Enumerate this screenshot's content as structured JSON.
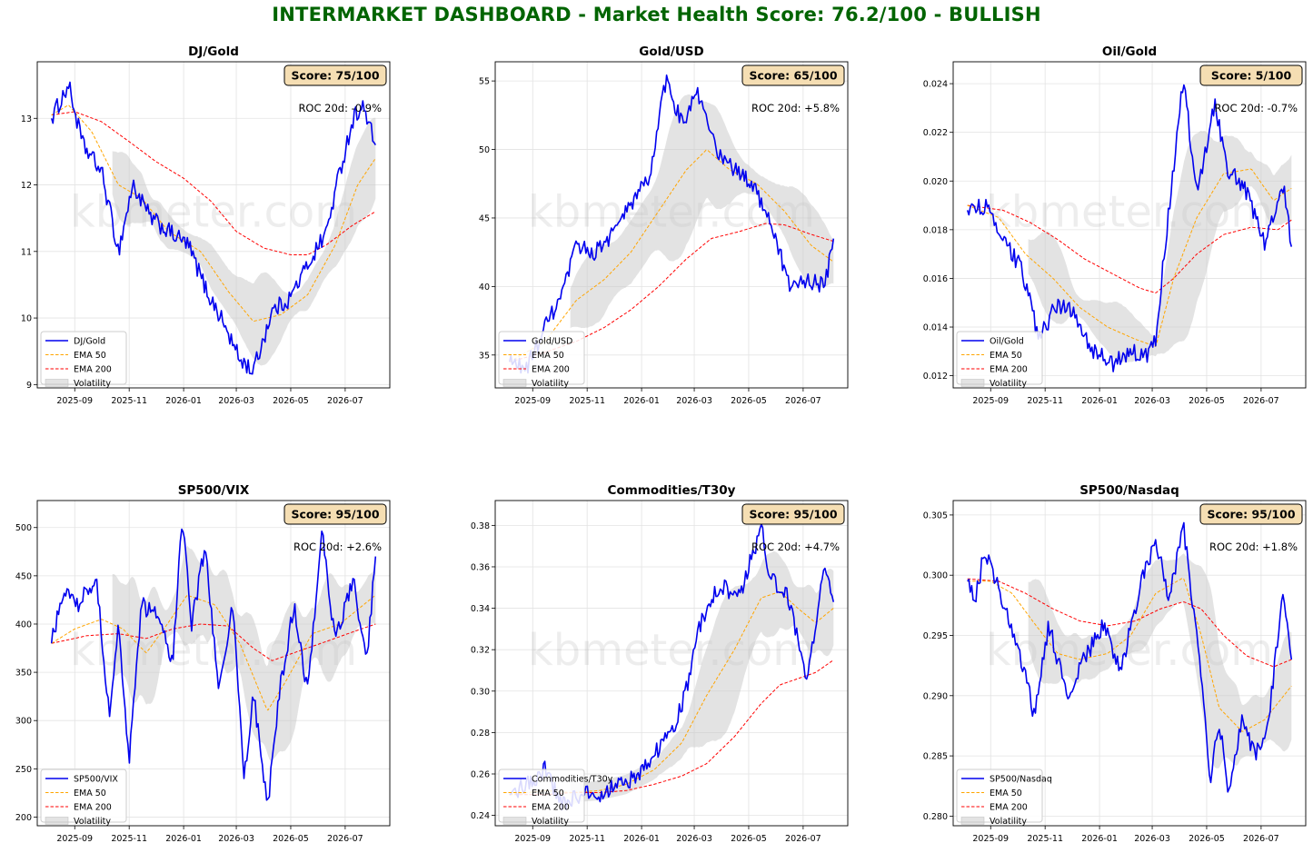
{
  "title": "INTERMARKET DASHBOARD - Market Health Score: 76.2/100 - BULLISH",
  "watermark": "kbmeter.com",
  "colors": {
    "title": "#006400",
    "price": "#0000ee",
    "ema50": "#ffa500",
    "ema200": "#ff0000",
    "volatility": "#c8c8c8",
    "score_box": "#f5deb3"
  },
  "x_ticks": [
    "2025-09",
    "2025-11",
    "2026-01",
    "2026-03",
    "2026-05",
    "2026-07"
  ],
  "legend_labels": {
    "ema50": "EMA 50",
    "ema200": "EMA 200",
    "volatility": "Volatility"
  },
  "chart_data": [
    {
      "type": "line",
      "title": "DJ/Gold",
      "score": "Score: 75/100",
      "roc": "ROC 20d: -0.9%",
      "ylim": [
        8.95,
        13.85
      ],
      "yticks": [
        "9",
        "10",
        "11",
        "12",
        "13"
      ],
      "series": [
        {
          "name": "DJ/Gold",
          "x": [
            "2025-08-06",
            "2025-08-25",
            "2025-09-10",
            "2025-10-01",
            "2025-10-20",
            "2025-11-05",
            "2025-11-25",
            "2025-12-15",
            "2026-01-06",
            "2026-01-27",
            "2026-02-12",
            "2026-03-04",
            "2026-03-20",
            "2026-04-10",
            "2026-04-30",
            "2026-05-20",
            "2026-06-10",
            "2026-06-25",
            "2026-07-10",
            "2026-07-20",
            "2026-08-04"
          ],
          "y": [
            13.0,
            13.5,
            12.6,
            12.2,
            11.0,
            12.0,
            11.5,
            11.3,
            11.1,
            10.4,
            10.0,
            9.4,
            9.2,
            10.1,
            10.3,
            10.8,
            11.3,
            12.2,
            13.0,
            13.2,
            12.6
          ]
        },
        {
          "name": "EMA 50",
          "x": [
            "2025-08-06",
            "2025-08-25",
            "2025-09-20",
            "2025-10-20",
            "2025-11-15",
            "2025-12-15",
            "2026-01-20",
            "2026-02-20",
            "2026-03-20",
            "2026-04-20",
            "2026-05-20",
            "2026-06-20",
            "2026-07-15",
            "2026-08-04"
          ],
          "y": [
            13.05,
            13.2,
            12.8,
            12.0,
            11.8,
            11.3,
            11.0,
            10.4,
            9.95,
            10.05,
            10.35,
            11.1,
            12.0,
            12.4
          ]
        },
        {
          "name": "EMA 200",
          "x": [
            "2025-08-06",
            "2025-09-01",
            "2025-10-01",
            "2025-11-01",
            "2025-12-01",
            "2026-01-01",
            "2026-02-01",
            "2026-03-01",
            "2026-04-01",
            "2026-05-01",
            "2026-05-20",
            "2026-06-10",
            "2026-07-10",
            "2026-08-04"
          ],
          "y": [
            13.05,
            13.1,
            12.95,
            12.65,
            12.35,
            12.1,
            11.75,
            11.3,
            11.05,
            10.95,
            10.95,
            11.1,
            11.4,
            11.6
          ]
        }
      ]
    },
    {
      "type": "line",
      "title": "Gold/USD",
      "score": "Score: 65/100",
      "roc": "ROC 20d: +5.8%",
      "ylim": [
        32.6,
        56.4
      ],
      "yticks": [
        "35",
        "40",
        "45",
        "50",
        "55"
      ],
      "series": [
        {
          "name": "Gold/USD",
          "x": [
            "2025-08-06",
            "2025-08-25",
            "2025-09-15",
            "2025-10-05",
            "2025-10-20",
            "2025-11-10",
            "2025-12-01",
            "2025-12-20",
            "2026-01-10",
            "2026-01-28",
            "2026-02-15",
            "2026-03-05",
            "2026-03-25",
            "2026-04-15",
            "2026-05-05",
            "2026-05-25",
            "2026-06-15",
            "2026-07-05",
            "2026-07-25",
            "2026-08-04"
          ],
          "y": [
            34.5,
            34.0,
            37.0,
            39.5,
            43.0,
            42.5,
            44.0,
            46.0,
            48.0,
            55.0,
            52.0,
            54.0,
            50.0,
            48.5,
            47.5,
            45.0,
            40.0,
            40.5,
            40.0,
            43.5
          ]
        },
        {
          "name": "EMA 50",
          "x": [
            "2025-08-06",
            "2025-09-15",
            "2025-10-20",
            "2025-11-20",
            "2025-12-20",
            "2026-01-20",
            "2026-02-20",
            "2026-03-15",
            "2026-04-10",
            "2026-05-10",
            "2026-06-10",
            "2026-07-10",
            "2026-08-04"
          ],
          "y": [
            34.5,
            36.0,
            39.0,
            40.5,
            42.5,
            45.5,
            48.5,
            50.0,
            48.5,
            47.5,
            45.5,
            43.0,
            41.8
          ]
        },
        {
          "name": "EMA 200",
          "x": [
            "2025-08-06",
            "2025-09-15",
            "2025-10-20",
            "2025-11-20",
            "2025-12-20",
            "2026-01-20",
            "2026-02-20",
            "2026-03-20",
            "2026-04-20",
            "2026-05-20",
            "2026-06-10",
            "2026-07-10",
            "2026-08-04"
          ],
          "y": [
            34.5,
            35.2,
            36.0,
            37.0,
            38.3,
            40.0,
            42.0,
            43.5,
            44.0,
            44.6,
            44.5,
            43.8,
            43.3
          ]
        }
      ]
    },
    {
      "type": "line",
      "title": "Oil/Gold",
      "score": "Score: 5/100",
      "roc": "ROC 20d: -0.7%",
      "ylim": [
        0.0115,
        0.0249
      ],
      "yticks": [
        "0.012",
        "0.014",
        "0.016",
        "0.018",
        "0.020",
        "0.022",
        "0.024"
      ],
      "series": [
        {
          "name": "Oil/Gold",
          "x": [
            "2025-08-06",
            "2025-08-25",
            "2025-09-15",
            "2025-10-05",
            "2025-10-25",
            "2025-11-15",
            "2025-12-05",
            "2025-12-25",
            "2026-01-15",
            "2026-02-05",
            "2026-02-25",
            "2026-03-05",
            "2026-03-20",
            "2026-04-05",
            "2026-04-20",
            "2026-05-10",
            "2026-05-25",
            "2026-06-15",
            "2026-07-05",
            "2026-07-25",
            "2026-08-04"
          ],
          "y": [
            0.0188,
            0.019,
            0.0175,
            0.0165,
            0.0135,
            0.015,
            0.0145,
            0.013,
            0.0125,
            0.013,
            0.0128,
            0.0135,
            0.019,
            0.0242,
            0.0195,
            0.0232,
            0.0205,
            0.0195,
            0.0175,
            0.02,
            0.0173
          ]
        },
        {
          "name": "EMA 50",
          "x": [
            "2025-08-06",
            "2025-09-10",
            "2025-10-10",
            "2025-11-10",
            "2025-12-10",
            "2026-01-10",
            "2026-02-10",
            "2026-03-05",
            "2026-03-25",
            "2026-04-20",
            "2026-05-20",
            "2026-06-20",
            "2026-07-15",
            "2026-08-04"
          ],
          "y": [
            0.019,
            0.0185,
            0.017,
            0.016,
            0.0148,
            0.014,
            0.0135,
            0.0132,
            0.016,
            0.0185,
            0.0203,
            0.0205,
            0.0192,
            0.0197
          ]
        },
        {
          "name": "EMA 200",
          "x": [
            "2025-08-06",
            "2025-09-15",
            "2025-10-15",
            "2025-11-15",
            "2025-12-15",
            "2026-01-15",
            "2026-02-15",
            "2026-03-05",
            "2026-03-25",
            "2026-04-20",
            "2026-05-20",
            "2026-06-20",
            "2026-07-20",
            "2026-08-04"
          ],
          "y": [
            0.019,
            0.0188,
            0.0183,
            0.0176,
            0.0168,
            0.0162,
            0.0156,
            0.0154,
            0.016,
            0.017,
            0.0178,
            0.0181,
            0.018,
            0.0184
          ]
        }
      ]
    },
    {
      "type": "line",
      "title": "SP500/VIX",
      "score": "Score: 95/100",
      "roc": "ROC 20d: +2.6%",
      "ylim": [
        191,
        528
      ],
      "yticks": [
        "200",
        "250",
        "300",
        "350",
        "400",
        "450",
        "500"
      ],
      "series": [
        {
          "name": "SP500/VIX",
          "x": [
            "2025-08-06",
            "2025-08-20",
            "2025-09-05",
            "2025-09-25",
            "2025-10-10",
            "2025-10-20",
            "2025-11-01",
            "2025-11-15",
            "2025-12-01",
            "2025-12-20",
            "2025-12-30",
            "2026-01-10",
            "2026-01-25",
            "2026-02-10",
            "2026-02-25",
            "2026-03-10",
            "2026-03-20",
            "2026-04-05",
            "2026-04-20",
            "2026-05-05",
            "2026-05-20",
            "2026-06-05",
            "2026-06-20",
            "2026-07-10",
            "2026-07-25",
            "2026-08-04"
          ],
          "y": [
            380,
            440,
            420,
            450,
            300,
            400,
            260,
            420,
            410,
            360,
            510,
            400,
            480,
            330,
            420,
            240,
            330,
            210,
            340,
            420,
            330,
            500,
            380,
            450,
            360,
            470
          ]
        },
        {
          "name": "EMA 50",
          "x": [
            "2025-08-06",
            "2025-09-01",
            "2025-10-01",
            "2025-10-25",
            "2025-11-20",
            "2025-12-10",
            "2026-01-05",
            "2026-02-05",
            "2026-03-05",
            "2026-04-05",
            "2026-04-25",
            "2026-05-25",
            "2026-06-25",
            "2026-08-04"
          ],
          "y": [
            380,
            395,
            405,
            395,
            370,
            395,
            430,
            420,
            380,
            310,
            340,
            390,
            400,
            430
          ]
        },
        {
          "name": "EMA 200",
          "x": [
            "2025-08-06",
            "2025-09-15",
            "2025-10-20",
            "2025-11-20",
            "2025-12-20",
            "2026-01-20",
            "2026-02-20",
            "2026-03-20",
            "2026-04-10",
            "2026-05-10",
            "2026-06-10",
            "2026-07-10",
            "2026-08-04"
          ],
          "y": [
            380,
            388,
            390,
            385,
            395,
            400,
            398,
            375,
            362,
            372,
            382,
            392,
            400
          ]
        }
      ]
    },
    {
      "type": "line",
      "title": "Commodities/T30y",
      "score": "Score: 95/100",
      "roc": "ROC 20d: +4.7%",
      "ylim": [
        0.235,
        0.392
      ],
      "yticks": [
        "0.24",
        "0.26",
        "0.28",
        "0.30",
        "0.32",
        "0.34",
        "0.36",
        "0.38"
      ],
      "series": [
        {
          "name": "Commodities/T30y",
          "x": [
            "2025-08-06",
            "2025-08-25",
            "2025-09-15",
            "2025-10-05",
            "2025-10-25",
            "2025-11-15",
            "2025-12-05",
            "2025-12-25",
            "2026-01-15",
            "2026-02-05",
            "2026-02-20",
            "2026-03-05",
            "2026-03-20",
            "2026-04-05",
            "2026-04-20",
            "2026-05-05",
            "2026-05-15",
            "2026-05-25",
            "2026-06-15",
            "2026-07-05",
            "2026-07-25",
            "2026-08-04"
          ],
          "y": [
            0.25,
            0.255,
            0.262,
            0.245,
            0.25,
            0.25,
            0.255,
            0.258,
            0.27,
            0.28,
            0.3,
            0.33,
            0.345,
            0.35,
            0.345,
            0.365,
            0.38,
            0.355,
            0.345,
            0.305,
            0.36,
            0.343
          ]
        },
        {
          "name": "EMA 50",
          "x": [
            "2025-08-06",
            "2025-09-15",
            "2025-10-15",
            "2025-11-15",
            "2025-12-15",
            "2026-01-15",
            "2026-02-15",
            "2026-03-15",
            "2026-04-15",
            "2026-05-15",
            "2026-06-05",
            "2026-06-25",
            "2026-07-15",
            "2026-08-04"
          ],
          "y": [
            0.25,
            0.252,
            0.251,
            0.252,
            0.255,
            0.262,
            0.275,
            0.298,
            0.32,
            0.345,
            0.348,
            0.34,
            0.333,
            0.34
          ]
        },
        {
          "name": "EMA 200",
          "x": [
            "2025-08-06",
            "2025-09-15",
            "2025-10-15",
            "2025-11-15",
            "2025-12-15",
            "2026-01-15",
            "2026-02-15",
            "2026-03-15",
            "2026-04-15",
            "2026-05-15",
            "2026-06-05",
            "2026-06-25",
            "2026-07-15",
            "2026-08-04"
          ],
          "y": [
            0.25,
            0.25,
            0.251,
            0.251,
            0.252,
            0.255,
            0.259,
            0.265,
            0.278,
            0.294,
            0.303,
            0.306,
            0.309,
            0.315
          ]
        }
      ]
    },
    {
      "type": "line",
      "title": "SP500/Nasdaq",
      "score": "Score: 95/100",
      "roc": "ROC 20d: +1.8%",
      "ylim": [
        0.2792,
        0.3062
      ],
      "yticks": [
        "0.280",
        "0.285",
        "0.290",
        "0.295",
        "0.300",
        "0.305"
      ],
      "series": [
        {
          "name": "SP500/Nasdaq",
          "x": [
            "2025-08-06",
            "2025-08-15",
            "2025-08-25",
            "2025-09-10",
            "2025-09-25",
            "2025-10-10",
            "2025-10-20",
            "2025-11-05",
            "2025-11-25",
            "2025-12-15",
            "2026-01-05",
            "2026-01-25",
            "2026-02-15",
            "2026-03-05",
            "2026-03-20",
            "2026-04-05",
            "2026-04-20",
            "2026-05-05",
            "2026-05-15",
            "2026-05-25",
            "2026-06-10",
            "2026-06-25",
            "2026-07-10",
            "2026-07-25",
            "2026-08-04"
          ],
          "y": [
            0.2995,
            0.298,
            0.302,
            0.299,
            0.295,
            0.292,
            0.288,
            0.296,
            0.29,
            0.293,
            0.296,
            0.292,
            0.299,
            0.303,
            0.298,
            0.304,
            0.295,
            0.283,
            0.288,
            0.282,
            0.288,
            0.285,
            0.288,
            0.299,
            0.293
          ]
        },
        {
          "name": "EMA 50",
          "x": [
            "2025-08-06",
            "2025-09-01",
            "2025-09-25",
            "2025-10-20",
            "2025-11-15",
            "2025-12-10",
            "2026-01-10",
            "2026-02-05",
            "2026-03-05",
            "2026-04-05",
            "2026-04-25",
            "2026-05-15",
            "2026-06-10",
            "2026-07-05",
            "2026-08-04"
          ],
          "y": [
            0.2995,
            0.2995,
            0.2985,
            0.296,
            0.2935,
            0.293,
            0.2935,
            0.295,
            0.2985,
            0.2998,
            0.295,
            0.289,
            0.287,
            0.288,
            0.2908
          ]
        },
        {
          "name": "EMA 200",
          "x": [
            "2025-08-06",
            "2025-09-10",
            "2025-10-10",
            "2025-11-10",
            "2025-12-10",
            "2026-01-10",
            "2026-02-10",
            "2026-03-10",
            "2026-04-05",
            "2026-04-25",
            "2026-05-20",
            "2026-06-15",
            "2026-07-15",
            "2026-08-04"
          ],
          "y": [
            0.2997,
            0.2995,
            0.2985,
            0.2972,
            0.2962,
            0.2958,
            0.2962,
            0.2972,
            0.2978,
            0.2972,
            0.295,
            0.2933,
            0.2924,
            0.293
          ]
        }
      ]
    }
  ]
}
